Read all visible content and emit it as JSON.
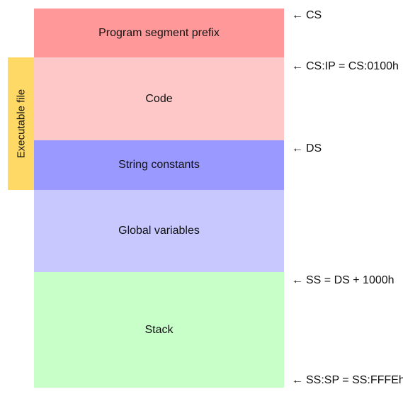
{
  "segments": {
    "psp": {
      "label": "Program segment prefix",
      "color": "#ff9999"
    },
    "code": {
      "label": "Code",
      "color": "#ffc8c8"
    },
    "strings": {
      "label": "String constants",
      "color": "#9999ff"
    },
    "globals": {
      "label": "Global variables",
      "color": "#c8c8ff"
    },
    "stack": {
      "label": "Stack",
      "color": "#c8ffc8"
    }
  },
  "executable": {
    "label": "Executable file",
    "color": "#ffd966"
  },
  "pointers": {
    "arrow_glyph": "←",
    "cs": "CS",
    "cs_ip": "CS:IP = CS:0100h",
    "ds": "DS",
    "ss": "SS = DS + 1000h",
    "ss_sp": "SS:SP = SS:FFFEh"
  }
}
